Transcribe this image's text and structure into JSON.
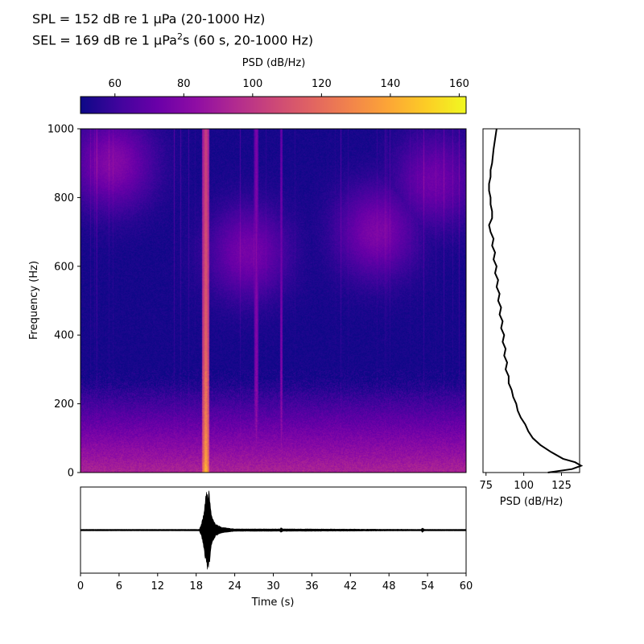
{
  "header": {
    "spl_text": "SPL = 152 dB re 1 µPa (20-1000 Hz)",
    "sel_prefix": "SEL = 169 dB re 1 µPa",
    "sel_sup": "2",
    "sel_suffix": "s (60 s, 20-1000 Hz)"
  },
  "colors": {
    "cmap": [
      "#0d0887",
      "#41049d",
      "#6a00a8",
      "#8f0da4",
      "#b12a90",
      "#cc4778",
      "#e16462",
      "#f2844b",
      "#fca636",
      "#fcce25",
      "#f0f921"
    ],
    "line": "#000000",
    "frame": "#000000"
  },
  "chart_data": [
    {
      "type": "colorbar",
      "label": "PSD (dB/Hz)",
      "range": [
        50,
        162
      ],
      "ticks": [
        60,
        80,
        100,
        120,
        140,
        160
      ],
      "tick_labels": [
        "60",
        "80",
        "100",
        "120",
        "140",
        "160"
      ],
      "colormap": "plasma"
    },
    {
      "type": "heatmap",
      "title": "",
      "xlabel": "",
      "ylabel": "Frequency (Hz)",
      "xlim": [
        0,
        60
      ],
      "ylim": [
        0,
        1000
      ],
      "yticks": [
        0,
        200,
        400,
        600,
        800,
        1000
      ],
      "ytick_labels": [
        "0",
        "200",
        "400",
        "600",
        "800",
        "1000"
      ],
      "background_psd": 52,
      "low_freq_profile": [
        {
          "freq": 0,
          "psd": 92
        },
        {
          "freq": 20,
          "psd": 90
        },
        {
          "freq": 60,
          "psd": 84
        },
        {
          "freq": 100,
          "psd": 78
        },
        {
          "freq": 150,
          "psd": 70
        },
        {
          "freq": 200,
          "psd": 62
        },
        {
          "freq": 250,
          "psd": 55
        },
        {
          "freq": 300,
          "psd": 50
        }
      ],
      "events": [
        {
          "time_start": 18.9,
          "time_end": 20.0,
          "psd_low_freq": 158,
          "psd_high_freq": 104
        },
        {
          "time_start": 27.0,
          "time_end": 27.6,
          "psd_low_freq": 88,
          "psd_high_freq": 78
        },
        {
          "time_start": 31.0,
          "time_end": 31.4,
          "psd_low_freq": 96,
          "psd_high_freq": 72
        }
      ],
      "blobs": [
        {
          "time": 5,
          "freq": 900,
          "psd": 80
        },
        {
          "time": 26,
          "freq": 640,
          "psd": 76
        },
        {
          "time": 46,
          "freq": 700,
          "psd": 78
        },
        {
          "time": 55,
          "freq": 850,
          "psd": 74
        }
      ]
    },
    {
      "type": "line",
      "title": "",
      "xlabel": "PSD (dB/Hz)",
      "ylabel": "",
      "xlim": [
        73,
        137
      ],
      "ylim": [
        0,
        1000
      ],
      "xticks": [
        75,
        100,
        125
      ],
      "xtick_labels": [
        "75",
        "100",
        "125"
      ],
      "series": [
        {
          "x": [
            116,
            132,
            138,
            134,
            126,
            118,
            111,
            106,
            103,
            101,
            98,
            96,
            95,
            93,
            92,
            90,
            90,
            88,
            89,
            87,
            88,
            86,
            87,
            85,
            86,
            84,
            85,
            83,
            84,
            82,
            83,
            81,
            82,
            80,
            81,
            79,
            80,
            78,
            77,
            79,
            79,
            78,
            78,
            77,
            77,
            78,
            78,
            79,
            80,
            81,
            82
          ],
          "y": [
            0,
            10,
            20,
            30,
            40,
            60,
            80,
            100,
            120,
            140,
            160,
            180,
            200,
            220,
            240,
            260,
            280,
            300,
            320,
            340,
            360,
            380,
            400,
            420,
            440,
            460,
            480,
            500,
            520,
            540,
            560,
            580,
            600,
            620,
            640,
            660,
            680,
            700,
            720,
            740,
            760,
            780,
            800,
            820,
            840,
            860,
            880,
            900,
            940,
            970,
            1000
          ]
        }
      ]
    },
    {
      "type": "line",
      "title": "",
      "xlabel": "Time (s)",
      "ylabel": "",
      "xlim": [
        0,
        60
      ],
      "ylim": [
        -1,
        1
      ],
      "xticks": [
        0,
        6,
        12,
        18,
        24,
        30,
        36,
        42,
        48,
        54,
        60
      ],
      "xtick_labels": [
        "0",
        "6",
        "12",
        "18",
        "24",
        "30",
        "36",
        "42",
        "48",
        "54",
        "60"
      ],
      "envelope": [
        {
          "t": 0,
          "amp": 0.02
        },
        {
          "t": 18.5,
          "amp": 0.02
        },
        {
          "t": 18.8,
          "amp": 0.15
        },
        {
          "t": 19.2,
          "amp": 0.45
        },
        {
          "t": 19.6,
          "amp": 0.98
        },
        {
          "t": 20.0,
          "amp": 0.95
        },
        {
          "t": 20.4,
          "amp": 0.35
        },
        {
          "t": 21.0,
          "amp": 0.15
        },
        {
          "t": 22.0,
          "amp": 0.07
        },
        {
          "t": 24.0,
          "amp": 0.03
        },
        {
          "t": 31.0,
          "amp": 0.03
        },
        {
          "t": 31.2,
          "amp": 0.06
        },
        {
          "t": 31.5,
          "amp": 0.03
        },
        {
          "t": 53.0,
          "amp": 0.02
        },
        {
          "t": 53.2,
          "amp": 0.06
        },
        {
          "t": 53.5,
          "amp": 0.02
        },
        {
          "t": 60,
          "amp": 0.02
        }
      ]
    }
  ]
}
